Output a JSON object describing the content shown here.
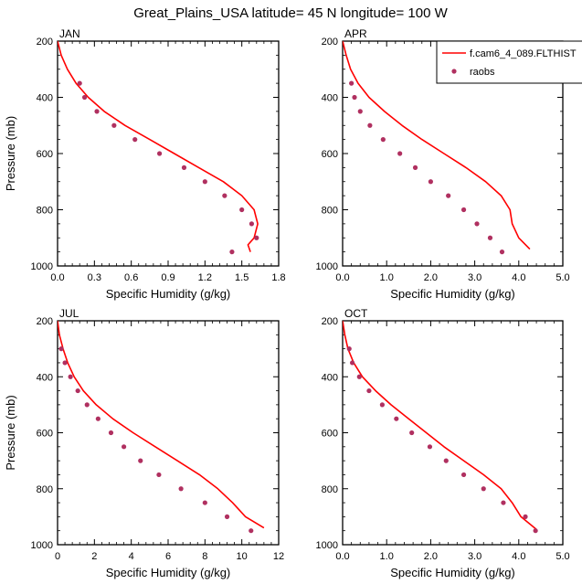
{
  "title": "Great_Plains_USA  latitude= 45 N longitude= 100 W",
  "colors": {
    "model_line": "#ff0000",
    "obs_marker": "#b03060",
    "axes": "#000000"
  },
  "legend": {
    "model_label": "f.cam6_4_089.FLTHIST",
    "obs_label": "raobs",
    "placement": "top-right of APR panel"
  },
  "chart_data": [
    {
      "type": "line",
      "panel": "JAN",
      "xlabel": "Specific Humidity (g/kg)",
      "ylabel": "Pressure (mb)",
      "xlim": [
        0,
        1.8
      ],
      "ylim": [
        1000,
        200
      ],
      "xticks": [
        "0.0",
        "0.3",
        "0.6",
        "0.9",
        "1.2",
        "1.5",
        "1.8"
      ],
      "yticks": [
        "200",
        "400",
        "600",
        "800",
        "1000"
      ],
      "series": [
        {
          "name": "f.cam6_4_089.FLTHIST",
          "kind": "line",
          "x": [
            0.0,
            0.03,
            0.08,
            0.15,
            0.25,
            0.38,
            0.55,
            0.75,
            0.95,
            1.15,
            1.35,
            1.5,
            1.6,
            1.63,
            1.6,
            1.55,
            1.57
          ],
          "y": [
            200,
            250,
            300,
            350,
            400,
            450,
            500,
            550,
            600,
            650,
            700,
            750,
            800,
            850,
            900,
            925,
            950
          ]
        },
        {
          "name": "raobs",
          "kind": "scatter",
          "x": [
            0.18,
            0.22,
            0.32,
            0.46,
            0.63,
            0.83,
            1.03,
            1.2,
            1.36,
            1.5,
            1.58,
            1.62,
            1.42
          ],
          "y": [
            350,
            400,
            450,
            500,
            550,
            600,
            650,
            700,
            750,
            800,
            850,
            900,
            950
          ]
        }
      ]
    },
    {
      "type": "line",
      "panel": "APR",
      "xlabel": "Specific Humidity (g/kg)",
      "ylabel": "",
      "xlim": [
        0,
        5
      ],
      "ylim": [
        1000,
        200
      ],
      "xticks": [
        "0.0",
        "1.0",
        "2.0",
        "3.0",
        "4.0",
        "5.0"
      ],
      "yticks": [
        "200",
        "400",
        "600",
        "800",
        "1000"
      ],
      "series": [
        {
          "name": "f.cam6_4_089.FLTHIST",
          "kind": "line",
          "x": [
            0.0,
            0.08,
            0.18,
            0.35,
            0.6,
            0.95,
            1.35,
            1.8,
            2.3,
            2.8,
            3.25,
            3.6,
            3.8,
            3.85,
            4.0,
            4.25
          ],
          "y": [
            200,
            250,
            300,
            350,
            400,
            450,
            500,
            550,
            600,
            650,
            700,
            750,
            800,
            850,
            900,
            940
          ]
        },
        {
          "name": "raobs",
          "kind": "scatter",
          "x": [
            0.2,
            0.27,
            0.4,
            0.62,
            0.92,
            1.3,
            1.65,
            2.0,
            2.4,
            2.75,
            3.05,
            3.35,
            3.62
          ],
          "y": [
            350,
            400,
            450,
            500,
            550,
            600,
            650,
            700,
            750,
            800,
            850,
            900,
            950
          ]
        }
      ]
    },
    {
      "type": "line",
      "panel": "JUL",
      "xlabel": "Specific Humidity (g/kg)",
      "ylabel": "Pressure (mb)",
      "xlim": [
        0,
        12
      ],
      "ylim": [
        1000,
        200
      ],
      "xticks": [
        "0",
        "2",
        "4",
        "6",
        "8",
        "10",
        "12"
      ],
      "yticks": [
        "200",
        "400",
        "600",
        "800",
        "1000"
      ],
      "series": [
        {
          "name": "f.cam6_4_089.FLTHIST",
          "kind": "line",
          "x": [
            0.0,
            0.1,
            0.3,
            0.55,
            0.9,
            1.4,
            2.1,
            3.0,
            4.1,
            5.3,
            6.5,
            7.7,
            8.7,
            9.5,
            10.2,
            11.2
          ],
          "y": [
            200,
            250,
            300,
            350,
            400,
            450,
            500,
            550,
            600,
            650,
            700,
            750,
            800,
            850,
            900,
            940
          ]
        },
        {
          "name": "raobs",
          "kind": "scatter",
          "x": [
            0.2,
            0.4,
            0.7,
            1.1,
            1.6,
            2.2,
            2.9,
            3.6,
            4.5,
            5.5,
            6.7,
            8.0,
            9.2,
            10.5
          ],
          "y": [
            300,
            350,
            400,
            450,
            500,
            550,
            600,
            650,
            700,
            750,
            800,
            850,
            900,
            950
          ]
        }
      ]
    },
    {
      "type": "line",
      "panel": "OCT",
      "xlabel": "Specific Humidity (g/kg)",
      "ylabel": "",
      "xlim": [
        0,
        5
      ],
      "ylim": [
        1000,
        200
      ],
      "xticks": [
        "0.0",
        "1.0",
        "2.0",
        "3.0",
        "4.0",
        "5.0"
      ],
      "yticks": [
        "200",
        "400",
        "600",
        "800",
        "1000"
      ],
      "series": [
        {
          "name": "f.cam6_4_089.FLTHIST",
          "kind": "line",
          "x": [
            0.0,
            0.05,
            0.12,
            0.25,
            0.45,
            0.75,
            1.1,
            1.5,
            1.9,
            2.3,
            2.75,
            3.2,
            3.6,
            3.85,
            4.05,
            4.4
          ],
          "y": [
            200,
            250,
            300,
            350,
            400,
            450,
            500,
            550,
            600,
            650,
            700,
            750,
            800,
            850,
            900,
            945
          ]
        },
        {
          "name": "raobs",
          "kind": "scatter",
          "x": [
            0.15,
            0.22,
            0.38,
            0.6,
            0.9,
            1.22,
            1.57,
            1.98,
            2.35,
            2.75,
            3.2,
            3.65,
            4.15,
            4.38
          ],
          "y": [
            300,
            350,
            400,
            450,
            500,
            550,
            600,
            650,
            700,
            750,
            800,
            850,
            900,
            950
          ]
        }
      ]
    }
  ]
}
